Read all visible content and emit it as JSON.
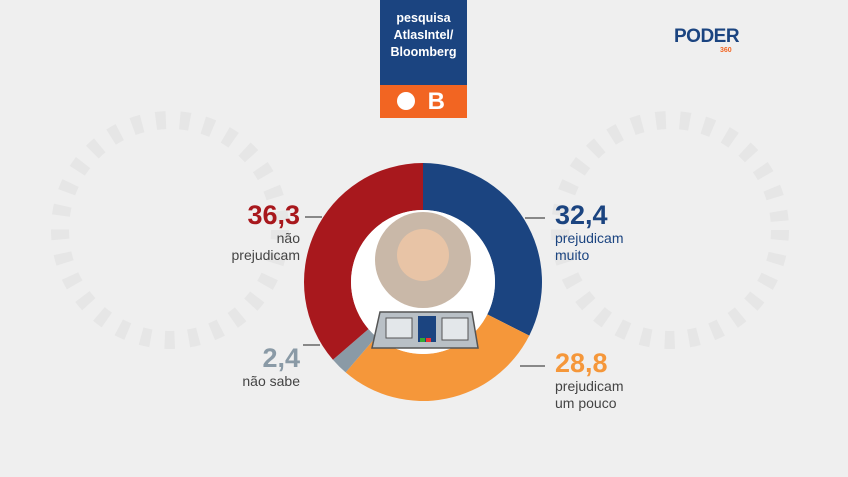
{
  "header": {
    "source": "pesquisa AtlasIntel/ Bloomberg",
    "badge": "B",
    "brand": "PODER",
    "brand_sub": "360"
  },
  "chart_data": {
    "type": "pie",
    "donut": true,
    "categories": [
      "prejudicam muito",
      "prejudicam um pouco",
      "não sabe",
      "não prejudicam"
    ],
    "values": [
      32.4,
      28.8,
      2.4,
      36.3
    ],
    "value_labels": [
      "32,4",
      "28,8",
      "2,4",
      "36,3"
    ],
    "colors": [
      "#1b4480",
      "#f5973a",
      "#8a9aa6",
      "#a8181d"
    ]
  }
}
